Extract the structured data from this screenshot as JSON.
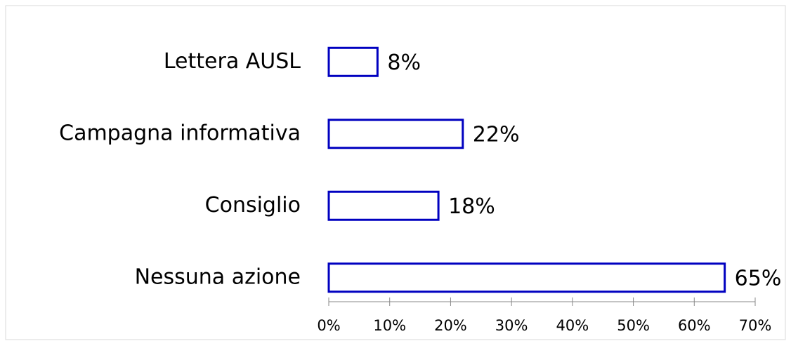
{
  "chart_data": {
    "type": "bar",
    "orientation": "horizontal",
    "categories": [
      "Lettera AUSL",
      "Campagna informativa",
      "Consiglio",
      "Nessuna azione"
    ],
    "values": [
      8,
      22,
      18,
      65
    ],
    "value_labels": [
      "8%",
      "22%",
      "18%",
      "65%"
    ],
    "color": "#0000c0",
    "xlim": [
      0,
      70
    ],
    "xticks": [
      {
        "value": 0,
        "label": "0%"
      },
      {
        "value": 10,
        "label": "10%"
      },
      {
        "value": 20,
        "label": "20%"
      },
      {
        "value": 30,
        "label": "30%"
      },
      {
        "value": 40,
        "label": "40%"
      },
      {
        "value": 50,
        "label": "50%"
      },
      {
        "value": 60,
        "label": "60%"
      },
      {
        "value": 70,
        "label": "70%"
      }
    ],
    "grid": false
  }
}
